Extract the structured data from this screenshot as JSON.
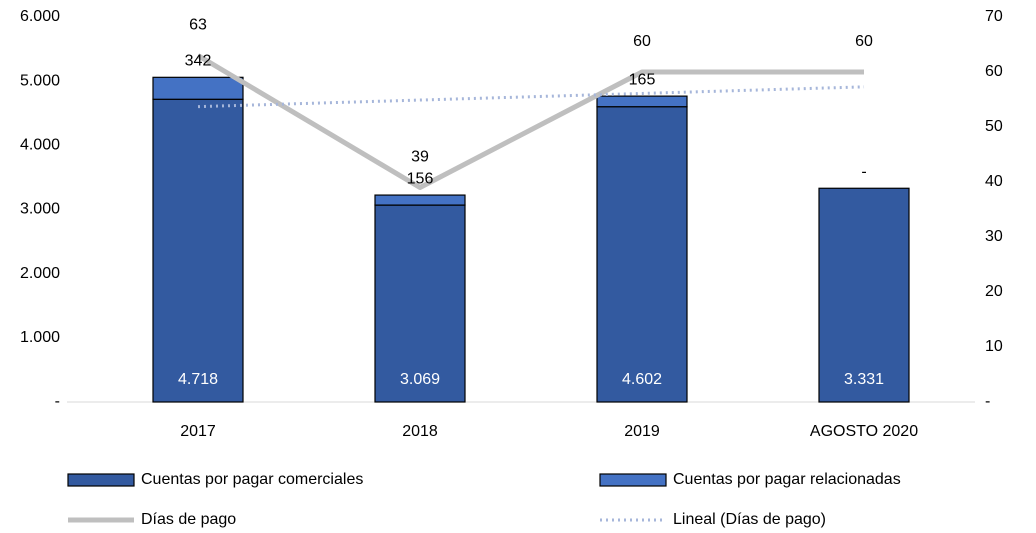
{
  "chart_data": {
    "type": "bar-line",
    "categories": [
      "2017",
      "2018",
      "2019",
      "AGOSTO 2020"
    ],
    "series": [
      {
        "name": "Cuentas por pagar comerciales",
        "type": "bar",
        "color": "#335aa0",
        "values": [
          4718,
          3069,
          4602,
          3331
        ],
        "value_labels": [
          "4.718",
          "3.069",
          "4.602",
          "3.331"
        ],
        "label_color": "#ffffff"
      },
      {
        "name": "Cuentas por pagar relacionadas",
        "type": "bar",
        "color": "#4472c4",
        "values": [
          342,
          156,
          165,
          0
        ],
        "value_labels": [
          "342",
          "156",
          "165",
          "-"
        ]
      },
      {
        "name": "Días de pago",
        "type": "line",
        "axis": "y2",
        "color": "#bfbfbf",
        "values": [
          63,
          39,
          60,
          60
        ],
        "value_labels": [
          "63",
          "39",
          "60",
          "60"
        ]
      },
      {
        "name": "Lineal (Días de pago)",
        "type": "line",
        "axis": "y2",
        "color": "#a6b6da",
        "line_style": "dotted",
        "values": [
          53.7,
          54.9,
          56.1,
          57.3
        ]
      }
    ],
    "ylim": [
      0,
      6000
    ],
    "yticks": [
      {
        "value": 0,
        "label": "-"
      },
      {
        "value": 1000,
        "label": "1.000"
      },
      {
        "value": 2000,
        "label": "2.000"
      },
      {
        "value": 3000,
        "label": "3.000"
      },
      {
        "value": 4000,
        "label": "4.000"
      },
      {
        "value": 5000,
        "label": "5.000"
      },
      {
        "value": 6000,
        "label": "6.000"
      }
    ],
    "y2lim": [
      0,
      70
    ],
    "y2ticks": [
      {
        "value": 0,
        "label": "-"
      },
      10,
      20,
      30,
      40,
      50,
      60,
      70
    ],
    "grid": false
  }
}
